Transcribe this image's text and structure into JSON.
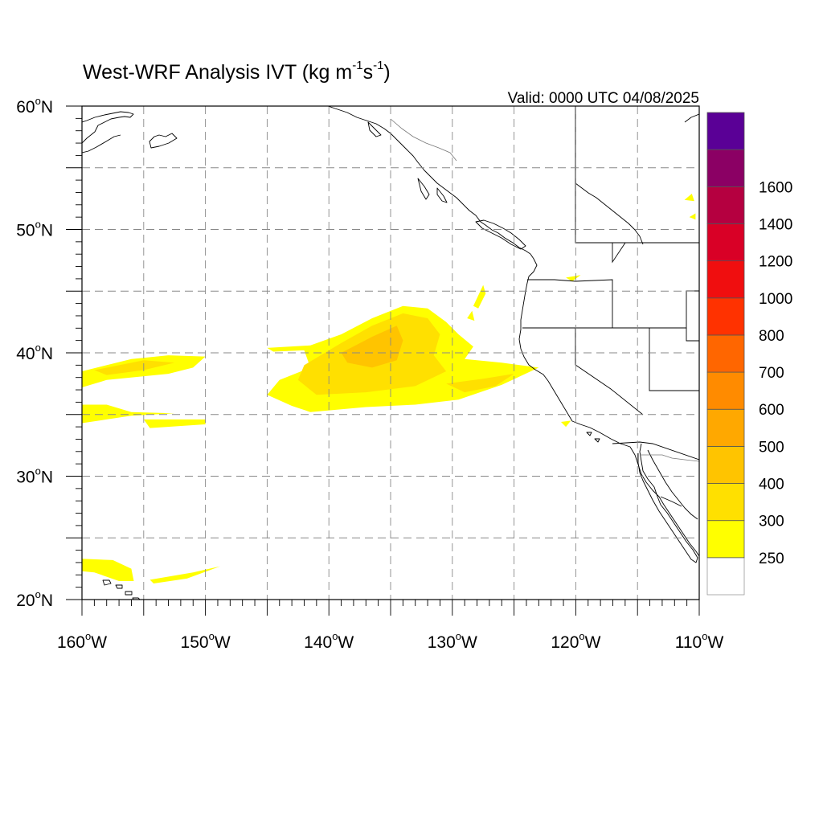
{
  "title": {
    "main": "West-WRF Analysis IVT (kg m",
    "exp1": "-1",
    "mid": "s",
    "exp2": "-1",
    "end": ")"
  },
  "valid_label": "Valid: 0000 UTC 04/08/2025",
  "map": {
    "lon_range": [
      -160,
      -110
    ],
    "lat_range": [
      20,
      60
    ],
    "grid": true,
    "lon_ticks": [
      {
        "value": -160,
        "label": "160",
        "suffix": "W"
      },
      {
        "value": -150,
        "label": "150",
        "suffix": "W"
      },
      {
        "value": -140,
        "label": "140",
        "suffix": "W"
      },
      {
        "value": -130,
        "label": "130",
        "suffix": "W"
      },
      {
        "value": -120,
        "label": "120",
        "suffix": "W"
      },
      {
        "value": -110,
        "label": "110",
        "suffix": "W"
      }
    ],
    "lat_ticks": [
      {
        "value": 60,
        "label": "60",
        "suffix": "N"
      },
      {
        "value": 50,
        "label": "50",
        "suffix": "N"
      },
      {
        "value": 40,
        "label": "40",
        "suffix": "N"
      },
      {
        "value": 30,
        "label": "30",
        "suffix": "N"
      },
      {
        "value": 20,
        "label": "20",
        "suffix": "N"
      }
    ],
    "degree_symbol": "o",
    "land_outline_color": "#000000",
    "ivt_regions": [
      {
        "level": 250,
        "points": [
          [
            -160,
            38.5
          ],
          [
            -156,
            39.5
          ],
          [
            -153,
            39.8
          ],
          [
            -150,
            39.7
          ],
          [
            -151,
            38.8
          ],
          [
            -153,
            38.3
          ],
          [
            -158,
            37.8
          ],
          [
            -160,
            37.2
          ]
        ]
      },
      {
        "level": 250,
        "points": [
          [
            -160,
            35.8
          ],
          [
            -158,
            35.8
          ],
          [
            -156,
            35.2
          ],
          [
            -152.5,
            35.1
          ],
          [
            -156,
            34.9
          ],
          [
            -158,
            34.6
          ],
          [
            -160,
            34.3
          ]
        ]
      },
      {
        "level": 250,
        "points": [
          [
            -155,
            34.6
          ],
          [
            -150,
            34.6
          ],
          [
            -150,
            34.2
          ],
          [
            -154.5,
            33.9
          ]
        ]
      },
      {
        "level": 250,
        "points": [
          [
            -145,
            40.4
          ],
          [
            -141.5,
            40.6
          ],
          [
            -139,
            41.5
          ],
          [
            -136.5,
            42.8
          ],
          [
            -134,
            43.8
          ],
          [
            -132,
            43.6
          ],
          [
            -130.5,
            42.5
          ],
          [
            -129.5,
            41.5
          ],
          [
            -128.3,
            40.5
          ],
          [
            -129,
            39.5
          ],
          [
            -126,
            39.2
          ],
          [
            -123,
            38.8
          ],
          [
            -126,
            37.4
          ],
          [
            -129.5,
            36.2
          ],
          [
            -133,
            35.8
          ],
          [
            -137,
            35.6
          ],
          [
            -141.5,
            35.2
          ],
          [
            -143,
            35.7
          ],
          [
            -145,
            36.6
          ],
          [
            -144,
            37.8
          ],
          [
            -141.5,
            38.8
          ],
          [
            -142,
            40.2
          ],
          [
            -144.5,
            40.1
          ]
        ]
      },
      {
        "level": 300,
        "points": [
          [
            -142,
            39
          ],
          [
            -139,
            40.8
          ],
          [
            -136.5,
            42.2
          ],
          [
            -134,
            43.2
          ],
          [
            -132,
            42.8
          ],
          [
            -131,
            41.5
          ],
          [
            -131.5,
            39.8
          ],
          [
            -130.5,
            38.5
          ],
          [
            -133,
            37.3
          ],
          [
            -137,
            36.8
          ],
          [
            -141,
            36.6
          ],
          [
            -142.5,
            37.8
          ]
        ]
      },
      {
        "level": 300,
        "points": [
          [
            -159,
            38.6
          ],
          [
            -155,
            39.4
          ],
          [
            -152.5,
            39.2
          ],
          [
            -155,
            38.6
          ],
          [
            -158,
            38.2
          ]
        ]
      },
      {
        "level": 300,
        "points": [
          [
            -130.5,
            37.5
          ],
          [
            -127.5,
            37.9
          ],
          [
            -125,
            38.3
          ],
          [
            -126.5,
            37.3
          ],
          [
            -129,
            36.8
          ]
        ]
      },
      {
        "level": 400,
        "points": [
          [
            -139,
            40
          ],
          [
            -136.5,
            41.3
          ],
          [
            -134.5,
            42.2
          ],
          [
            -134,
            41
          ],
          [
            -134.5,
            39.4
          ],
          [
            -136.5,
            38.8
          ],
          [
            -138.5,
            39.2
          ]
        ]
      },
      {
        "level": 250,
        "points": [
          [
            -128.3,
            43.8
          ],
          [
            -127.5,
            45.5
          ],
          [
            -127.3,
            44.8
          ],
          [
            -127.9,
            43.6
          ]
        ]
      },
      {
        "level": 250,
        "points": [
          [
            -128.8,
            42.8
          ],
          [
            -128.4,
            43.4
          ],
          [
            -128.2,
            42.6
          ]
        ]
      },
      {
        "level": 250,
        "points": [
          [
            -160,
            23.3
          ],
          [
            -157.5,
            23.2
          ],
          [
            -156,
            22.5
          ],
          [
            -155.8,
            21.5
          ],
          [
            -157,
            21.5
          ],
          [
            -159,
            22.2
          ],
          [
            -160,
            22.3
          ]
        ]
      },
      {
        "level": 250,
        "points": [
          [
            -154.5,
            21.6
          ],
          [
            -151,
            22.2
          ],
          [
            -148.8,
            22.7
          ],
          [
            -151.5,
            21.7
          ],
          [
            -154.2,
            21.3
          ]
        ]
      },
      {
        "level": 250,
        "points": [
          [
            -111.2,
            52.4
          ],
          [
            -110.6,
            52.9
          ],
          [
            -110.4,
            52.3
          ]
        ]
      },
      {
        "level": 250,
        "points": [
          [
            -110.8,
            51
          ],
          [
            -110.3,
            51.3
          ],
          [
            -110.3,
            50.8
          ]
        ]
      },
      {
        "level": 250,
        "points": [
          [
            -120.8,
            46.1
          ],
          [
            -119.6,
            46.3
          ],
          [
            -120.3,
            45.8
          ]
        ]
      },
      {
        "level": 250,
        "points": [
          [
            -121.2,
            34.4
          ],
          [
            -120.4,
            34.5
          ],
          [
            -120.8,
            34.0
          ]
        ]
      }
    ]
  },
  "colorbar": {
    "colors": [
      "#ffffff",
      "#ffff00",
      "#ffe000",
      "#ffc400",
      "#ffa800",
      "#ff8b00",
      "#ff6600",
      "#ff3200",
      "#f00e0f",
      "#d90026",
      "#b50040",
      "#8b0064",
      "#5a0096"
    ],
    "labels": [
      "250",
      "300",
      "400",
      "500",
      "600",
      "700",
      "800",
      "1000",
      "1200",
      "1400",
      "1600"
    ]
  }
}
